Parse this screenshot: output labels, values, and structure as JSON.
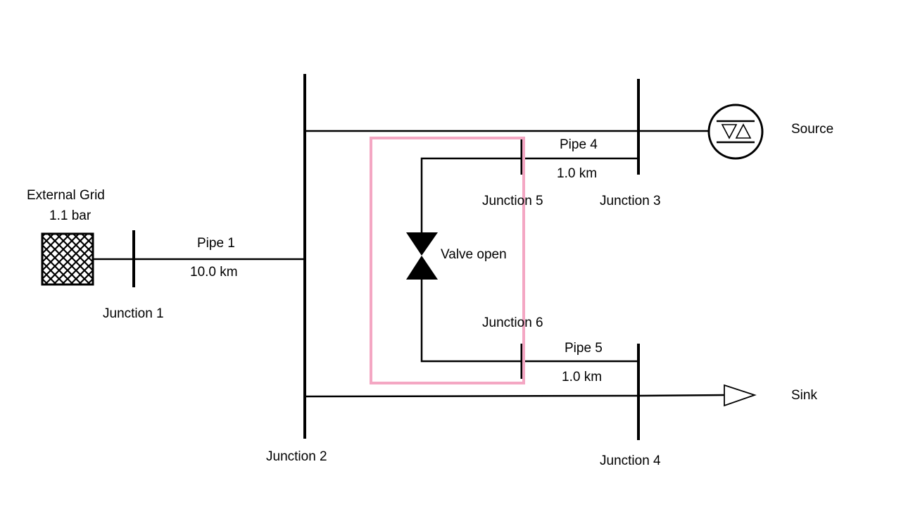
{
  "external_grid": {
    "name": "External Grid",
    "pressure": "1.1 bar"
  },
  "junctions": {
    "j1": "Junction 1",
    "j2": "Junction 2",
    "j3": "Junction 3",
    "j4": "Junction 4",
    "j5": "Junction 5",
    "j6": "Junction 6"
  },
  "pipes": {
    "p1": {
      "name": "Pipe 1",
      "length": "10.0 km"
    },
    "p4": {
      "name": "Pipe 4",
      "length": "1.0 km"
    },
    "p5": {
      "name": "Pipe 5",
      "length": "1.0 km"
    }
  },
  "valve": {
    "label": "Valve open"
  },
  "source": {
    "label": "Source"
  },
  "sink": {
    "label": "Sink"
  },
  "colors": {
    "line": "#000000",
    "highlight": "#f4a7c3",
    "background": "#ffffff"
  },
  "icons": {
    "external_grid": "crosshatch-square-icon",
    "source": "source-circle-icon",
    "sink": "sink-triangle-icon",
    "valve": "valve-bowtie-icon"
  }
}
